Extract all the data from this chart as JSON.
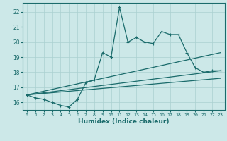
{
  "xlabel": "Humidex (Indice chaleur)",
  "bg_color": "#cce8e8",
  "line_color": "#1a6b6b",
  "grid_color": "#aad0d0",
  "x_data": [
    0,
    1,
    2,
    3,
    4,
    5,
    6,
    7,
    8,
    9,
    10,
    11,
    12,
    13,
    14,
    15,
    16,
    17,
    18,
    19,
    20,
    21,
    22,
    23
  ],
  "line1": [
    16.5,
    16.3,
    16.2,
    16.0,
    15.8,
    15.7,
    16.2,
    17.3,
    17.5,
    19.3,
    19.0,
    22.3,
    20.0,
    20.3,
    20.0,
    19.9,
    20.7,
    20.5,
    20.5,
    19.3,
    18.3,
    18.0,
    18.1,
    18.1
  ],
  "trend1_x": [
    0,
    23
  ],
  "trend1_y": [
    16.5,
    19.3
  ],
  "trend2_x": [
    0,
    23
  ],
  "trend2_y": [
    16.5,
    18.1
  ],
  "trend3_x": [
    0,
    23
  ],
  "trend3_y": [
    16.5,
    17.6
  ],
  "xlim": [
    -0.5,
    23.5
  ],
  "ylim": [
    15.5,
    22.6
  ],
  "yticks": [
    16,
    17,
    18,
    19,
    20,
    21,
    22
  ],
  "xticks": [
    0,
    1,
    2,
    3,
    4,
    5,
    6,
    7,
    8,
    9,
    10,
    11,
    12,
    13,
    14,
    15,
    16,
    17,
    18,
    19,
    20,
    21,
    22,
    23
  ]
}
